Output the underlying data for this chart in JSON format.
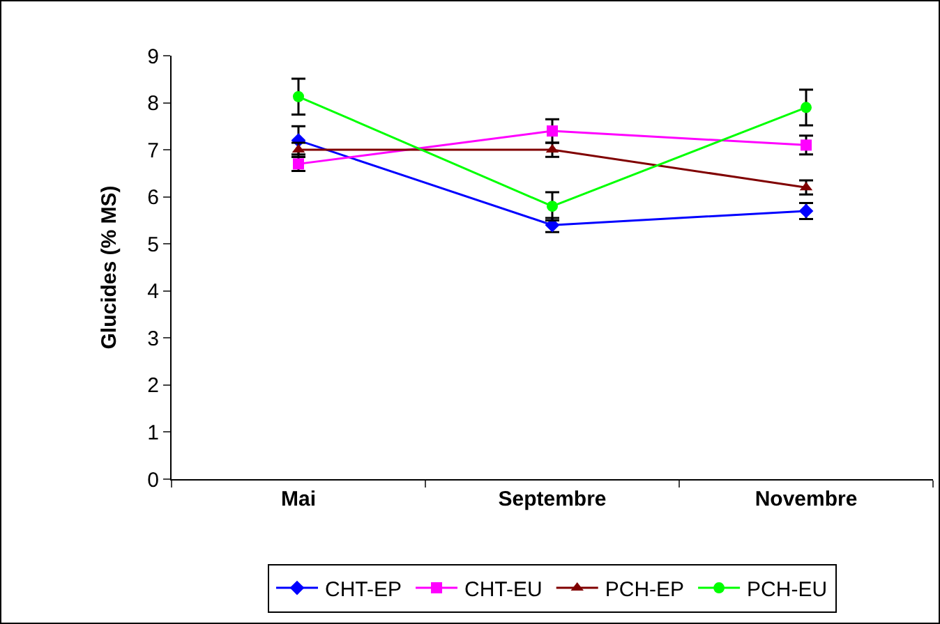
{
  "chart_data": {
    "type": "line",
    "ylabel": "Glucides (% MS)",
    "categories": [
      "Mai",
      "Septembre",
      "Novembre"
    ],
    "ylim": [
      0,
      9
    ],
    "yticks": [
      0,
      1,
      2,
      3,
      4,
      5,
      6,
      7,
      8,
      9
    ],
    "grid": false,
    "legend": "bottom",
    "series": [
      {
        "name": "CHT-EP",
        "color": "#0000ff",
        "marker": "diamond",
        "values": [
          7.2,
          5.4,
          5.7
        ],
        "errors": [
          0.3,
          0.15,
          0.17
        ]
      },
      {
        "name": "CHT-EU",
        "color": "#ff00ff",
        "marker": "square",
        "values": [
          6.7,
          7.4,
          7.1
        ],
        "errors": [
          0.15,
          0.25,
          0.2
        ]
      },
      {
        "name": "PCH-EP",
        "color": "#800000",
        "marker": "triangle",
        "values": [
          7.0,
          7.0,
          6.2
        ],
        "errors": [
          0.15,
          0.15,
          0.15
        ]
      },
      {
        "name": "PCH-EU",
        "color": "#00ff00",
        "marker": "circle",
        "values": [
          8.13,
          5.8,
          7.9
        ],
        "errors": [
          0.38,
          0.3,
          0.38
        ]
      }
    ]
  }
}
